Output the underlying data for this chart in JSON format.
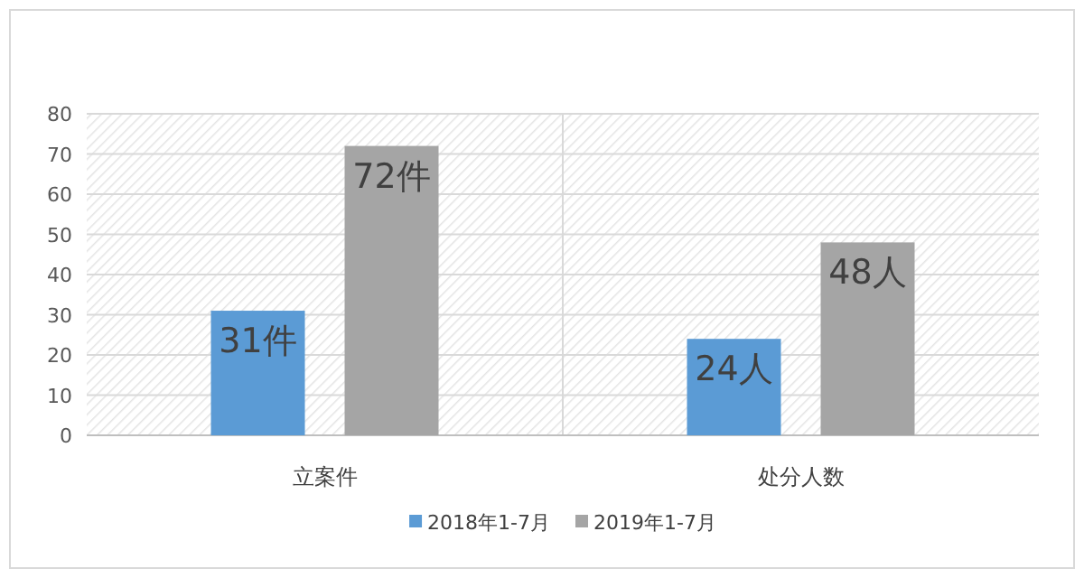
{
  "chart_data": {
    "type": "bar",
    "categories": [
      "立案件",
      "处分人数"
    ],
    "series": [
      {
        "name": "2018年1-7月",
        "color": "#5b9bd5",
        "values": [
          31,
          24
        ],
        "value_labels": [
          "31件",
          "24人"
        ]
      },
      {
        "name": "2019年1-7月",
        "color": "#a5a5a5",
        "values": [
          72,
          48
        ],
        "value_labels": [
          "72件",
          "48人"
        ]
      }
    ],
    "ylim": [
      0,
      80
    ],
    "yticks": [
      0,
      10,
      20,
      30,
      40,
      50,
      60,
      70,
      80
    ],
    "grid": "y",
    "legend": "bottom"
  }
}
